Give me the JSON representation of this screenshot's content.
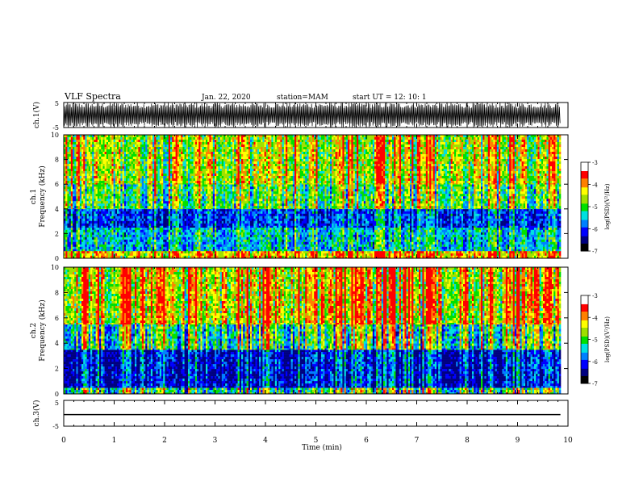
{
  "header": {
    "title": "VLF Spectra",
    "date": "Jan. 22, 2020",
    "station": "station=MAM",
    "start": "start UT =  12: 10: 1"
  },
  "chart_data": [
    {
      "type": "line",
      "panel": "waveform-ch1",
      "ylabel": "ch.1(V)",
      "ylim": [
        -5,
        5
      ],
      "yticks": [
        "5",
        "-5"
      ],
      "xlim": [
        0,
        10
      ],
      "description_values": {
        "signal": "dense impulsive waveform spanning full range"
      }
    },
    {
      "type": "heatmap",
      "panel": "spectrogram-ch1",
      "ylabel": "ch.1\nFrequency (kHz)",
      "ylabel_lines": [
        "ch.1",
        "Frequency (kHz)"
      ],
      "ylim": [
        0,
        10
      ],
      "yticks": [
        "0",
        "2",
        "4",
        "6",
        "8",
        "10"
      ],
      "xlim": [
        0,
        9.85
      ],
      "colorbar": {
        "label": "log(PSD)(V²/Hz)",
        "range": [
          -7,
          -3
        ],
        "ticks": [
          "-3",
          "-4",
          "-5",
          "-6",
          "-7"
        ]
      },
      "bands": [
        {
          "f_kHz": [
            0,
            0.6
          ],
          "level": -4.0
        },
        {
          "f_kHz": [
            0.6,
            2.5
          ],
          "level": -5.6
        },
        {
          "f_kHz": [
            2.5,
            4.0
          ],
          "level": -6.2
        },
        {
          "f_kHz": [
            4.0,
            6.0
          ],
          "level": -5.0
        },
        {
          "f_kHz": [
            6.0,
            10.0
          ],
          "level": -4.5
        }
      ]
    },
    {
      "type": "heatmap",
      "panel": "spectrogram-ch2",
      "ylabel": "ch.2\nFrequency (kHz)",
      "ylabel_lines": [
        "ch.2",
        "Frequency (kHz)"
      ],
      "ylim": [
        0,
        10
      ],
      "yticks": [
        "0",
        "2",
        "4",
        "6",
        "8",
        "10"
      ],
      "xlim": [
        0,
        9.85
      ],
      "colorbar": {
        "label": "log(PSD)(V²/Hz)",
        "range": [
          -7,
          -3
        ],
        "ticks": [
          "-3",
          "-4",
          "-5",
          "-6",
          "-7"
        ]
      },
      "bands": [
        {
          "f_kHz": [
            0,
            0.5
          ],
          "level": -5.2
        },
        {
          "f_kHz": [
            0.5,
            3.5
          ],
          "level": -6.5
        },
        {
          "f_kHz": [
            3.5,
            5.5
          ],
          "level": -5.2
        },
        {
          "f_kHz": [
            5.5,
            10.0
          ],
          "level": -4.2
        }
      ]
    },
    {
      "type": "line",
      "panel": "waveform-ch3",
      "ylabel": "ch.3(V)",
      "ylim": [
        -5,
        5
      ],
      "yticks": [
        "5",
        "-5"
      ],
      "xlim": [
        0,
        10
      ],
      "xlabel": "Time (min)",
      "xticks": [
        "0",
        "1",
        "2",
        "3",
        "4",
        "5",
        "6",
        "7",
        "8",
        "9",
        "10"
      ],
      "series": [
        {
          "x": [
            0,
            9.85
          ],
          "y": [
            -0.5,
            -0.5
          ]
        }
      ]
    }
  ],
  "colors": {
    "colormap": [
      "#000080",
      "#0000ff",
      "#0080ff",
      "#00e0e0",
      "#00e000",
      "#a0e000",
      "#ffff00",
      "#ff8000",
      "#ff0000",
      "#ffffff"
    ]
  }
}
